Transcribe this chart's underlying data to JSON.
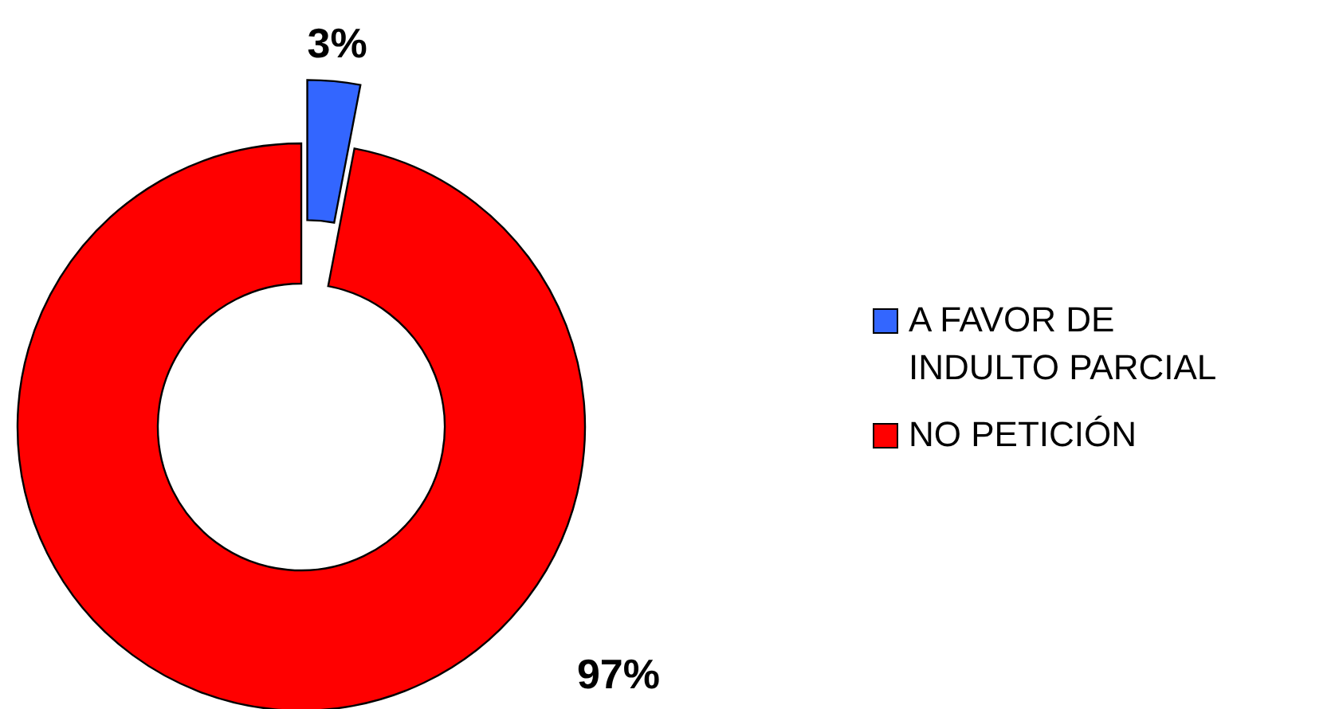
{
  "chart_data": {
    "type": "donut",
    "categories": [
      "A FAVOR DE INDULTO PARCIAL",
      "NO PETICIÓN"
    ],
    "values": [
      3,
      97
    ],
    "colors": [
      "#3366ff",
      "#ff0000"
    ],
    "value_labels": [
      "3%",
      "97%"
    ],
    "legend": "right"
  }
}
